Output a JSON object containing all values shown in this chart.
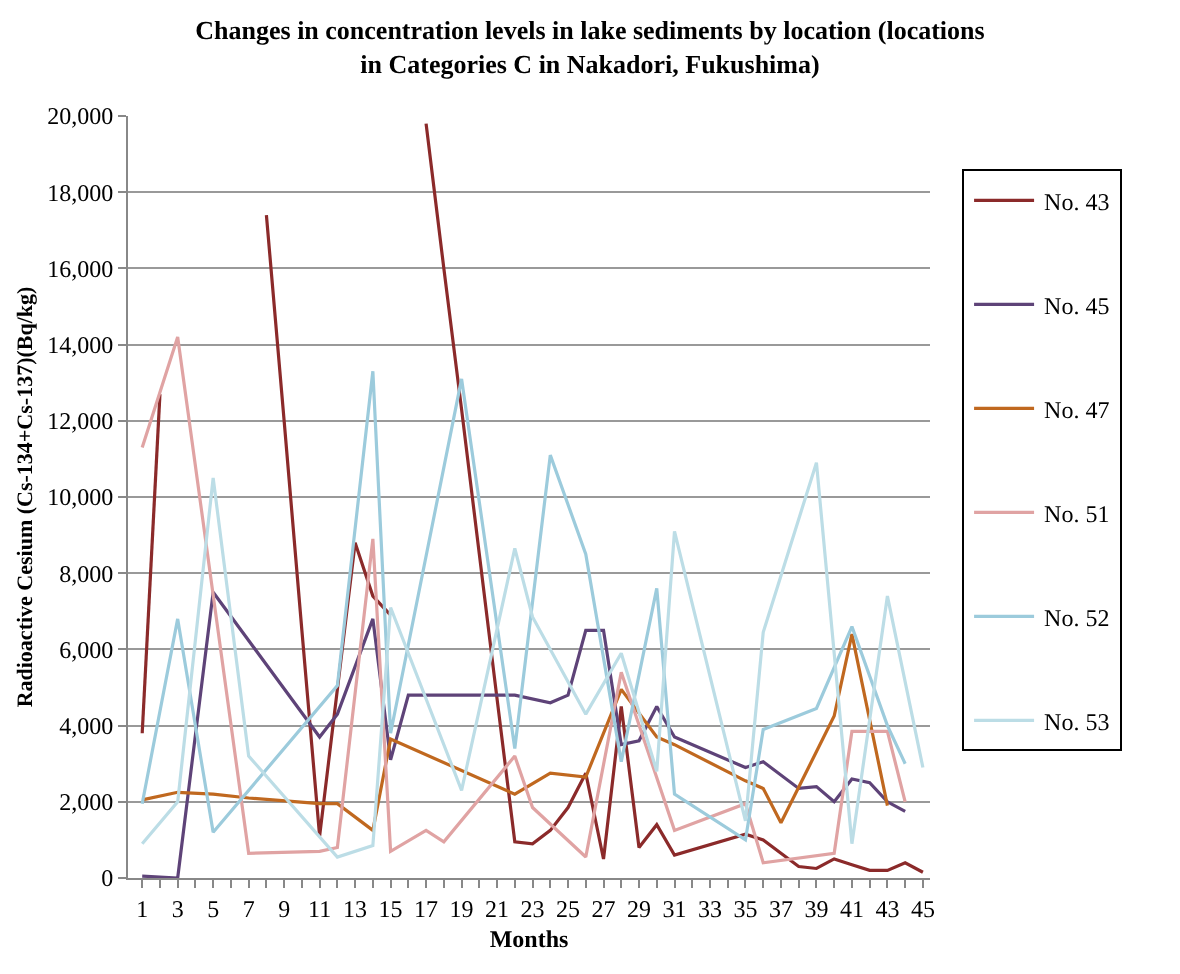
{
  "chart_data": {
    "type": "line",
    "title": "Changes in concentration levels in lake sediments by location (locations in Categories C in Nakadori, Fukushima)",
    "xlabel": "Months",
    "ylabel": "Radioactive Cesium (Cs-134+Cs-137)(Bq/kg)",
    "xlim": [
      0.2,
      45.4
    ],
    "xticks": [
      1,
      {
        "value": 2,
        "label": null
      },
      3,
      {
        "value": 4,
        "label": null
      },
      5,
      {
        "value": 6,
        "label": null
      },
      7,
      {
        "value": 8,
        "label": null
      },
      9,
      {
        "value": 10,
        "label": null
      },
      11,
      {
        "value": 12,
        "label": null
      },
      13,
      {
        "value": 14,
        "label": null
      },
      15,
      {
        "value": 16,
        "label": null
      },
      17,
      {
        "value": 18,
        "label": null
      },
      19,
      {
        "value": 20,
        "label": null
      },
      21,
      {
        "value": 22,
        "label": null
      },
      23,
      {
        "value": 24,
        "label": null
      },
      25,
      {
        "value": 26,
        "label": null
      },
      27,
      {
        "value": 28,
        "label": null
      },
      29,
      {
        "value": 30,
        "label": null
      },
      31,
      {
        "value": 32,
        "label": null
      },
      33,
      {
        "value": 34,
        "label": null
      },
      35,
      {
        "value": 36,
        "label": null
      },
      37,
      {
        "value": 38,
        "label": null
      },
      39,
      {
        "value": 40,
        "label": null
      },
      41,
      {
        "value": 42,
        "label": null
      },
      43,
      {
        "value": 44,
        "label": null
      },
      45
    ],
    "ylim": [
      0,
      20000
    ],
    "yticks": [
      {
        "value": 0,
        "label": "0"
      },
      {
        "value": 2000,
        "label": "2,000"
      },
      {
        "value": 4000,
        "label": "4,000"
      },
      {
        "value": 6000,
        "label": "6,000"
      },
      {
        "value": 8000,
        "label": "8,000"
      },
      {
        "value": 10000,
        "label": "10,000"
      },
      {
        "value": 12000,
        "label": "12,000"
      },
      {
        "value": 14000,
        "label": "14,000"
      },
      {
        "value": 16000,
        "label": "16,000"
      },
      {
        "value": 18000,
        "label": "18,000"
      },
      {
        "value": 20000,
        "label": "20,000"
      }
    ],
    "grid": "y",
    "legend": "right",
    "marker": "none",
    "line_style": "solid",
    "series": [
      {
        "name": "No. 43",
        "color": "#8b2a2a",
        "x": [
          1,
          2,
          3,
          7,
          8,
          9,
          10,
          11,
          13,
          14,
          15,
          16,
          17,
          18,
          19,
          20,
          21,
          22,
          23,
          24,
          25,
          26,
          27,
          28,
          29,
          30,
          31,
          35,
          36,
          37,
          38,
          39,
          40,
          41,
          42,
          43,
          44,
          45
        ],
        "values": [
          3800,
          12700,
          null,
          null,
          17400,
          12000,
          6500,
          1100,
          8800,
          7400,
          6900,
          null,
          19800,
          16000,
          12300,
          8500,
          4700,
          950,
          900,
          1250,
          1850,
          2750,
          500,
          4500,
          800,
          1400,
          600,
          1150,
          1000,
          650,
          300,
          250,
          500,
          350,
          200,
          200,
          400,
          150
        ]
      },
      {
        "name": "No. 45",
        "color": "#5e4378",
        "x": [
          1,
          3,
          5,
          11,
          12,
          14,
          15,
          16,
          22,
          24,
          25,
          26,
          27,
          28,
          29,
          30,
          31,
          35,
          36,
          38,
          39,
          40,
          41,
          42,
          43,
          44
        ],
        "values": [
          50,
          0,
          7500,
          3700,
          4300,
          6800,
          3100,
          4800,
          4800,
          4600,
          4800,
          6500,
          6500,
          3500,
          3600,
          4500,
          3700,
          2900,
          3050,
          2350,
          2400,
          2000,
          2600,
          2500,
          2000,
          1750
        ]
      },
      {
        "name": "No. 47",
        "color": "#c0681f",
        "x": [
          1,
          3,
          5,
          7,
          11,
          12,
          14,
          15,
          22,
          24,
          26,
          28,
          30,
          31,
          35,
          36,
          37,
          40,
          41,
          43
        ],
        "values": [
          2050,
          2250,
          2200,
          2100,
          1950,
          1950,
          1250,
          3650,
          2200,
          2750,
          2650,
          4950,
          3700,
          3500,
          2550,
          2350,
          1450,
          4250,
          6400,
          1900
        ]
      },
      {
        "name": "No. 51",
        "color": "#e0a3a3",
        "x": [
          1,
          3,
          7,
          11,
          12,
          14,
          15,
          17,
          18,
          22,
          23,
          26,
          28,
          31,
          35,
          36,
          40,
          41,
          43,
          44
        ],
        "values": [
          11300,
          14200,
          650,
          700,
          800,
          8900,
          700,
          1250,
          950,
          3200,
          1850,
          550,
          5400,
          1250,
          1950,
          400,
          650,
          3850,
          3850,
          2000
        ]
      },
      {
        "name": "No. 52",
        "color": "#9ccbdc",
        "x": [
          1,
          3,
          5,
          12,
          14,
          15,
          19,
          22,
          24,
          26,
          28,
          30,
          31,
          35,
          36,
          39,
          41,
          43,
          44
        ],
        "values": [
          1950,
          6800,
          1200,
          5050,
          13300,
          3800,
          13100,
          3400,
          11100,
          8500,
          3050,
          7600,
          2200,
          1000,
          3900,
          4450,
          6600,
          4000,
          3000
        ]
      },
      {
        "name": "No. 53",
        "color": "#bcdde6",
        "x": [
          1,
          3,
          5,
          7,
          12,
          14,
          15,
          19,
          22,
          23,
          26,
          28,
          30,
          31,
          35,
          36,
          39,
          41,
          43,
          45
        ],
        "values": [
          900,
          2000,
          10500,
          3200,
          550,
          850,
          7100,
          2300,
          8650,
          6850,
          4300,
          5900,
          2800,
          9100,
          1500,
          6450,
          10900,
          900,
          7400,
          2900
        ]
      }
    ]
  }
}
